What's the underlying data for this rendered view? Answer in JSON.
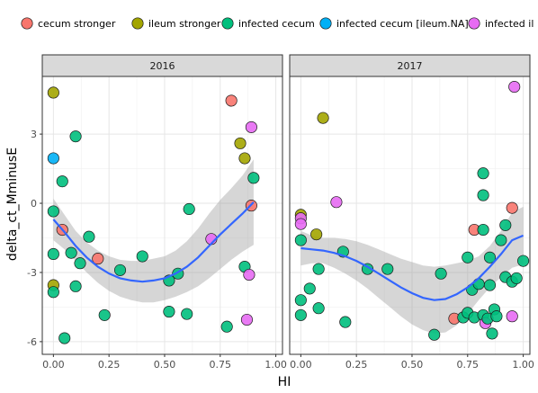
{
  "chart_data": {
    "type": "scatter",
    "xlabel": "HI",
    "ylabel": "delta_ct_MminusE",
    "xlim": [
      -0.05,
      1.03
    ],
    "ylim": [
      -6.55,
      5.5
    ],
    "x_ticks": [
      0.0,
      0.25,
      0.5,
      0.75,
      1.0
    ],
    "x_tick_labels": [
      "0.00",
      "0.25",
      "0.50",
      "0.75",
      "1.00"
    ],
    "y_ticks": [
      -6,
      -3,
      0,
      3
    ],
    "y_tick_labels": [
      "-6",
      "-3",
      "0",
      "3"
    ],
    "legend_position": "top",
    "legend": [
      {
        "name": "cecum stronger",
        "color": "#F8766D"
      },
      {
        "name": "ileum stronger",
        "color": "#A3A500"
      },
      {
        "name": "infected cecum",
        "color": "#00BF7D"
      },
      {
        "name": "infected cecum [ileum.NA]",
        "color": "#00B0F6"
      },
      {
        "name": "infected il",
        "color": "#E76BF3"
      }
    ],
    "panels": [
      {
        "title": "2016",
        "points": [
          {
            "x": 0.0,
            "y": 4.8,
            "g": 1
          },
          {
            "x": 0.0,
            "y": 1.95,
            "g": 3
          },
          {
            "x": 0.0,
            "y": -0.35,
            "g": 2
          },
          {
            "x": 0.0,
            "y": -2.2,
            "g": 2
          },
          {
            "x": 0.0,
            "y": -3.55,
            "g": 1
          },
          {
            "x": 0.0,
            "y": -3.85,
            "g": 2
          },
          {
            "x": 0.04,
            "y": 0.95,
            "g": 2
          },
          {
            "x": 0.04,
            "y": -1.15,
            "g": 0
          },
          {
            "x": 0.05,
            "y": -5.85,
            "g": 2
          },
          {
            "x": 0.08,
            "y": -2.15,
            "g": 2
          },
          {
            "x": 0.1,
            "y": 2.9,
            "g": 2
          },
          {
            "x": 0.1,
            "y": -3.6,
            "g": 2
          },
          {
            "x": 0.12,
            "y": -2.6,
            "g": 2
          },
          {
            "x": 0.16,
            "y": -1.45,
            "g": 2
          },
          {
            "x": 0.2,
            "y": -2.4,
            "g": 0
          },
          {
            "x": 0.23,
            "y": -4.85,
            "g": 2
          },
          {
            "x": 0.3,
            "y": -2.9,
            "g": 2
          },
          {
            "x": 0.4,
            "y": -2.3,
            "g": 2
          },
          {
            "x": 0.52,
            "y": -3.35,
            "g": 2
          },
          {
            "x": 0.52,
            "y": -4.7,
            "g": 2
          },
          {
            "x": 0.56,
            "y": -3.05,
            "g": 2
          },
          {
            "x": 0.6,
            "y": -4.8,
            "g": 2
          },
          {
            "x": 0.61,
            "y": -0.25,
            "g": 2
          },
          {
            "x": 0.71,
            "y": -1.55,
            "g": 4
          },
          {
            "x": 0.78,
            "y": -5.35,
            "g": 2
          },
          {
            "x": 0.8,
            "y": 4.45,
            "g": 0
          },
          {
            "x": 0.84,
            "y": 2.6,
            "g": 1
          },
          {
            "x": 0.86,
            "y": 1.95,
            "g": 1
          },
          {
            "x": 0.86,
            "y": -2.75,
            "g": 2
          },
          {
            "x": 0.87,
            "y": -5.05,
            "g": 4
          },
          {
            "x": 0.88,
            "y": -3.1,
            "g": 4
          },
          {
            "x": 0.89,
            "y": -0.1,
            "g": 0
          },
          {
            "x": 0.89,
            "y": 3.3,
            "g": 4
          },
          {
            "x": 0.9,
            "y": 1.1,
            "g": 2
          }
        ],
        "smooth": [
          {
            "x": 0.0,
            "y": -0.7,
            "lo": -1.6,
            "hi": 0.2
          },
          {
            "x": 0.05,
            "y": -1.25,
            "lo": -2.0,
            "hi": -0.5
          },
          {
            "x": 0.1,
            "y": -1.85,
            "lo": -2.5,
            "hi": -1.2
          },
          {
            "x": 0.15,
            "y": -2.35,
            "lo": -3.0,
            "hi": -1.7
          },
          {
            "x": 0.2,
            "y": -2.75,
            "lo": -3.45,
            "hi": -2.05
          },
          {
            "x": 0.25,
            "y": -3.05,
            "lo": -3.8,
            "hi": -2.3
          },
          {
            "x": 0.3,
            "y": -3.25,
            "lo": -4.05,
            "hi": -2.45
          },
          {
            "x": 0.35,
            "y": -3.35,
            "lo": -4.2,
            "hi": -2.5
          },
          {
            "x": 0.4,
            "y": -3.4,
            "lo": -4.3,
            "hi": -2.5
          },
          {
            "x": 0.45,
            "y": -3.35,
            "lo": -4.3,
            "hi": -2.4
          },
          {
            "x": 0.5,
            "y": -3.25,
            "lo": -4.2,
            "hi": -2.3
          },
          {
            "x": 0.55,
            "y": -3.05,
            "lo": -4.05,
            "hi": -2.05
          },
          {
            "x": 0.6,
            "y": -2.75,
            "lo": -3.85,
            "hi": -1.65
          },
          {
            "x": 0.65,
            "y": -2.35,
            "lo": -3.6,
            "hi": -1.1
          },
          {
            "x": 0.7,
            "y": -1.85,
            "lo": -3.25,
            "hi": -0.45
          },
          {
            "x": 0.75,
            "y": -1.35,
            "lo": -2.85,
            "hi": 0.15
          },
          {
            "x": 0.8,
            "y": -0.9,
            "lo": -2.45,
            "hi": 0.65
          },
          {
            "x": 0.85,
            "y": -0.45,
            "lo": -2.1,
            "hi": 1.2
          },
          {
            "x": 0.9,
            "y": 0.05,
            "lo": -1.8,
            "hi": 1.9
          }
        ]
      },
      {
        "title": "2017",
        "points": [
          {
            "x": 0.0,
            "y": -0.5,
            "g": 1
          },
          {
            "x": 0.0,
            "y": -0.65,
            "g": 4
          },
          {
            "x": 0.0,
            "y": -0.9,
            "g": 4
          },
          {
            "x": 0.0,
            "y": -1.6,
            "g": 2
          },
          {
            "x": 0.0,
            "y": -4.2,
            "g": 2
          },
          {
            "x": 0.0,
            "y": -4.85,
            "g": 2
          },
          {
            "x": 0.04,
            "y": -3.7,
            "g": 2
          },
          {
            "x": 0.07,
            "y": -1.35,
            "g": 1
          },
          {
            "x": 0.08,
            "y": -2.85,
            "g": 2
          },
          {
            "x": 0.08,
            "y": -4.55,
            "g": 2
          },
          {
            "x": 0.1,
            "y": 3.7,
            "g": 1
          },
          {
            "x": 0.16,
            "y": 0.05,
            "g": 4
          },
          {
            "x": 0.19,
            "y": -2.1,
            "g": 2
          },
          {
            "x": 0.2,
            "y": -5.15,
            "g": 2
          },
          {
            "x": 0.3,
            "y": -2.85,
            "g": 2
          },
          {
            "x": 0.39,
            "y": -2.85,
            "g": 2
          },
          {
            "x": 0.6,
            "y": -5.7,
            "g": 2
          },
          {
            "x": 0.63,
            "y": -3.05,
            "g": 2
          },
          {
            "x": 0.69,
            "y": -5.0,
            "g": 0
          },
          {
            "x": 0.73,
            "y": -4.95,
            "g": 2
          },
          {
            "x": 0.75,
            "y": -2.35,
            "g": 2
          },
          {
            "x": 0.75,
            "y": -4.75,
            "g": 2
          },
          {
            "x": 0.77,
            "y": -3.75,
            "g": 2
          },
          {
            "x": 0.78,
            "y": -1.15,
            "g": 0
          },
          {
            "x": 0.78,
            "y": -4.95,
            "g": 2
          },
          {
            "x": 0.8,
            "y": -3.5,
            "g": 2
          },
          {
            "x": 0.82,
            "y": 1.3,
            "g": 2
          },
          {
            "x": 0.82,
            "y": 0.35,
            "g": 2
          },
          {
            "x": 0.82,
            "y": -1.15,
            "g": 2
          },
          {
            "x": 0.82,
            "y": -4.85,
            "g": 2
          },
          {
            "x": 0.83,
            "y": -5.2,
            "g": 4
          },
          {
            "x": 0.84,
            "y": -5.0,
            "g": 2
          },
          {
            "x": 0.85,
            "y": -2.35,
            "g": 2
          },
          {
            "x": 0.85,
            "y": -3.55,
            "g": 2
          },
          {
            "x": 0.86,
            "y": -5.65,
            "g": 2
          },
          {
            "x": 0.87,
            "y": -4.6,
            "g": 2
          },
          {
            "x": 0.88,
            "y": -4.9,
            "g": 2
          },
          {
            "x": 0.9,
            "y": -1.6,
            "g": 2
          },
          {
            "x": 0.92,
            "y": -0.95,
            "g": 2
          },
          {
            "x": 0.92,
            "y": -3.2,
            "g": 2
          },
          {
            "x": 0.95,
            "y": -0.2,
            "g": 0
          },
          {
            "x": 0.95,
            "y": -3.4,
            "g": 2
          },
          {
            "x": 0.95,
            "y": -4.9,
            "g": 4
          },
          {
            "x": 0.96,
            "y": 5.05,
            "g": 4
          },
          {
            "x": 0.97,
            "y": -3.25,
            "g": 2
          },
          {
            "x": 1.0,
            "y": -2.5,
            "g": 2
          }
        ],
        "smooth": [
          {
            "x": 0.0,
            "y": -1.95,
            "lo": -2.7,
            "hi": -1.2
          },
          {
            "x": 0.05,
            "y": -2.0,
            "lo": -2.6,
            "hi": -1.4
          },
          {
            "x": 0.1,
            "y": -2.05,
            "lo": -2.6,
            "hi": -1.5
          },
          {
            "x": 0.15,
            "y": -2.15,
            "lo": -2.8,
            "hi": -1.5
          },
          {
            "x": 0.2,
            "y": -2.3,
            "lo": -3.05,
            "hi": -1.55
          },
          {
            "x": 0.25,
            "y": -2.5,
            "lo": -3.35,
            "hi": -1.65
          },
          {
            "x": 0.3,
            "y": -2.75,
            "lo": -3.7,
            "hi": -1.8
          },
          {
            "x": 0.35,
            "y": -3.05,
            "lo": -4.1,
            "hi": -2.0
          },
          {
            "x": 0.4,
            "y": -3.35,
            "lo": -4.5,
            "hi": -2.2
          },
          {
            "x": 0.45,
            "y": -3.65,
            "lo": -4.9,
            "hi": -2.4
          },
          {
            "x": 0.5,
            "y": -3.9,
            "lo": -5.25,
            "hi": -2.55
          },
          {
            "x": 0.55,
            "y": -4.1,
            "lo": -5.5,
            "hi": -2.7
          },
          {
            "x": 0.6,
            "y": -4.2,
            "lo": -5.65,
            "hi": -2.75
          },
          {
            "x": 0.65,
            "y": -4.15,
            "lo": -5.6,
            "hi": -2.7
          },
          {
            "x": 0.7,
            "y": -3.95,
            "lo": -5.3,
            "hi": -2.6
          },
          {
            "x": 0.75,
            "y": -3.65,
            "lo": -4.8,
            "hi": -2.5
          },
          {
            "x": 0.8,
            "y": -3.25,
            "lo": -4.2,
            "hi": -2.3
          },
          {
            "x": 0.85,
            "y": -2.75,
            "lo": -3.65,
            "hi": -1.85
          },
          {
            "x": 0.9,
            "y": -2.2,
            "lo": -3.2,
            "hi": -1.2
          },
          {
            "x": 0.95,
            "y": -1.6,
            "lo": -2.8,
            "hi": -0.4
          },
          {
            "x": 1.0,
            "y": -1.4,
            "lo": -2.65,
            "hi": -0.15
          }
        ]
      }
    ]
  }
}
